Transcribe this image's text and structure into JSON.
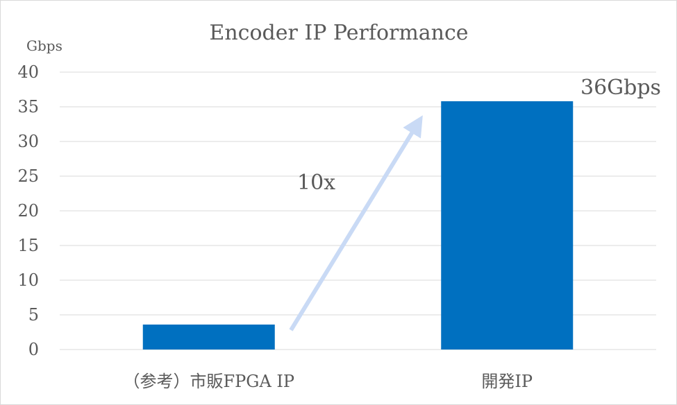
{
  "chart_data": {
    "type": "bar",
    "title": "Encoder IP Performance",
    "unit_label": "Gbps",
    "categories": [
      "（参考）市販FPGA IP",
      "開発IP"
    ],
    "values": [
      3.6,
      35.8
    ],
    "ylim": [
      0,
      40
    ],
    "yticks": [
      0,
      5,
      10,
      15,
      20,
      25,
      30,
      35,
      40
    ],
    "grid": true,
    "bar_color": "#0070C0",
    "arrow_color": "#C9DAF5",
    "annotations": {
      "speedup": "10x",
      "value_label": "36Gbps"
    }
  }
}
